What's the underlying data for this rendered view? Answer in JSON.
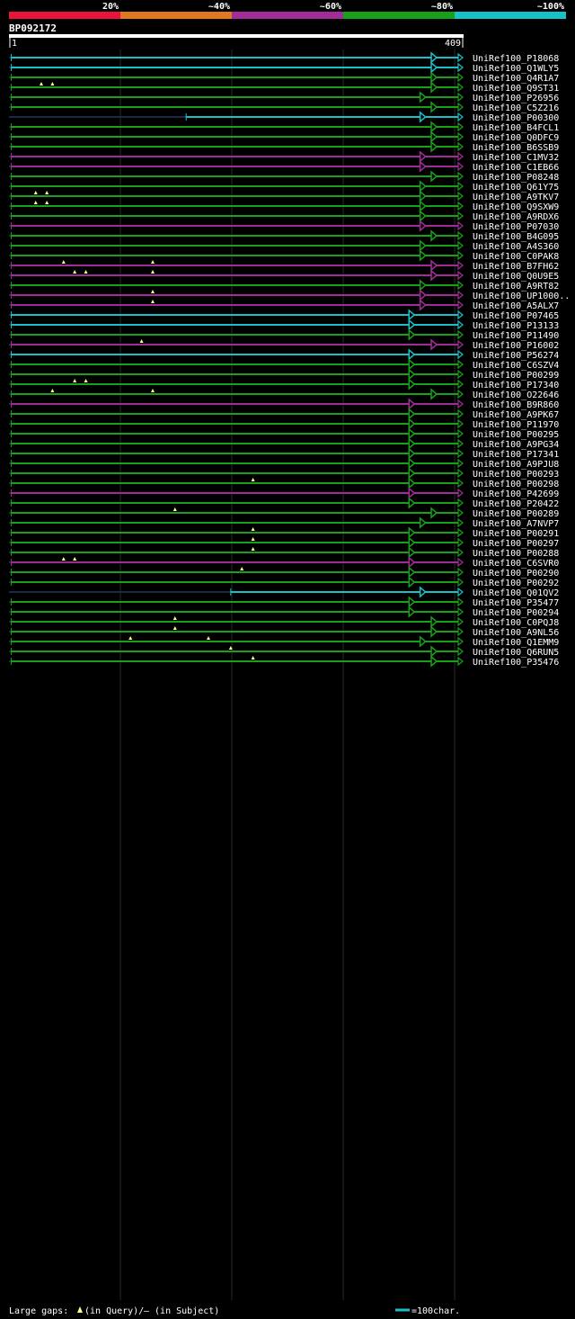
{
  "chart_data": {
    "type": "alignment-overview",
    "title": "BP092172",
    "query_start_label": "1",
    "query_end_label": "409",
    "query_length": 409,
    "identity_legend": [
      {
        "label": "20%",
        "color": "#e8143c"
      },
      {
        "label": "~40%",
        "color": "#e07820"
      },
      {
        "label": "~60%",
        "color": "#a02c98"
      },
      {
        "label": "~80%",
        "color": "#18a018"
      },
      {
        "label": "~100%",
        "color": "#18c0c8"
      }
    ],
    "hits": [
      {
        "name": "UniRef100_P18068",
        "s": 3,
        "e": 409,
        "c": "#18c0c8",
        "a": 380,
        "g": []
      },
      {
        "name": "UniRef100_Q1WLY5",
        "s": 3,
        "e": 409,
        "c": "#18c0c8",
        "a": 380,
        "g": []
      },
      {
        "name": "UniRef100_Q4R1A7",
        "s": 3,
        "e": 409,
        "c": "#18a018",
        "a": 380,
        "g": []
      },
      {
        "name": "UniRef100_Q9ST31",
        "s": 3,
        "e": 409,
        "c": "#18a018",
        "a": 380,
        "g": [
          30,
          40
        ]
      },
      {
        "name": "UniRef100_P26956",
        "s": 3,
        "e": 409,
        "c": "#18a018",
        "a": 370,
        "g": []
      },
      {
        "name": "UniRef100_C5Z216",
        "s": 3,
        "e": 409,
        "c": "#18a018",
        "a": 380,
        "g": []
      },
      {
        "name": "UniRef100_P00300",
        "s": 160,
        "e": 409,
        "c": "#18c0c8",
        "a": 370,
        "g": []
      },
      {
        "name": "UniRef100_B4FCL1",
        "s": 3,
        "e": 409,
        "c": "#18a018",
        "a": 380,
        "g": []
      },
      {
        "name": "UniRef100_Q0DFC9",
        "s": 3,
        "e": 409,
        "c": "#18a018",
        "a": 380,
        "g": []
      },
      {
        "name": "UniRef100_B6SSB9",
        "s": 3,
        "e": 409,
        "c": "#18a018",
        "a": 380,
        "g": []
      },
      {
        "name": "UniRef100_C1MV32",
        "s": 3,
        "e": 409,
        "c": "#a02c98",
        "a": 370,
        "g": []
      },
      {
        "name": "UniRef100_C1EB66",
        "s": 3,
        "e": 409,
        "c": "#a02c98",
        "a": 370,
        "g": []
      },
      {
        "name": "UniRef100_P08248",
        "s": 3,
        "e": 409,
        "c": "#18a018",
        "a": 380,
        "g": []
      },
      {
        "name": "UniRef100_Q61Y75",
        "s": 3,
        "e": 409,
        "c": "#18a018",
        "a": 370,
        "g": []
      },
      {
        "name": "UniRef100_A9TKV7",
        "s": 3,
        "e": 409,
        "c": "#18a018",
        "a": 370,
        "g": [
          25,
          35
        ]
      },
      {
        "name": "UniRef100_Q9SXW9",
        "s": 3,
        "e": 409,
        "c": "#18a018",
        "a": 370,
        "g": [
          25,
          35
        ]
      },
      {
        "name": "UniRef100_A9RDX6",
        "s": 3,
        "e": 409,
        "c": "#18a018",
        "a": 370,
        "g": []
      },
      {
        "name": "UniRef100_P07030",
        "s": 3,
        "e": 409,
        "c": "#a02c98",
        "a": 370,
        "g": []
      },
      {
        "name": "UniRef100_B4G095",
        "s": 3,
        "e": 409,
        "c": "#18a018",
        "a": 380,
        "g": []
      },
      {
        "name": "UniRef100_A4S360",
        "s": 3,
        "e": 409,
        "c": "#18a018",
        "a": 370,
        "g": []
      },
      {
        "name": "UniRef100_C0PAK8",
        "s": 3,
        "e": 409,
        "c": "#18a018",
        "a": 370,
        "g": []
      },
      {
        "name": "UniRef100_B7FH62",
        "s": 3,
        "e": 409,
        "c": "#a02c98",
        "a": 380,
        "g": [
          50,
          130
        ]
      },
      {
        "name": "UniRef100_Q0U9E5",
        "s": 3,
        "e": 409,
        "c": "#a02c98",
        "a": 380,
        "g": [
          60,
          70,
          130
        ]
      },
      {
        "name": "UniRef100_A9RT82",
        "s": 3,
        "e": 409,
        "c": "#18a018",
        "a": 370,
        "g": []
      },
      {
        "name": "UniRef100_UP1000..",
        "s": 3,
        "e": 409,
        "c": "#a02c98",
        "a": 370,
        "g": [
          130
        ]
      },
      {
        "name": "UniRef100_A5ALX7",
        "s": 3,
        "e": 409,
        "c": "#a02c98",
        "a": 370,
        "g": [
          130
        ]
      },
      {
        "name": "UniRef100_P07465",
        "s": 3,
        "e": 409,
        "c": "#18c0c8",
        "a": 360,
        "g": []
      },
      {
        "name": "UniRef100_P13133",
        "s": 3,
        "e": 409,
        "c": "#18c0c8",
        "a": 360,
        "g": []
      },
      {
        "name": "UniRef100_P11490",
        "s": 3,
        "e": 409,
        "c": "#18a018",
        "a": 360,
        "g": []
      },
      {
        "name": "UniRef100_P16002",
        "s": 3,
        "e": 409,
        "c": "#a02c98",
        "a": 380,
        "g": [
          120
        ]
      },
      {
        "name": "UniRef100_P56274",
        "s": 3,
        "e": 409,
        "c": "#18c0c8",
        "a": 360,
        "g": []
      },
      {
        "name": "UniRef100_C6SZV4",
        "s": 3,
        "e": 409,
        "c": "#18a018",
        "a": 360,
        "g": []
      },
      {
        "name": "UniRef100_P00299",
        "s": 3,
        "e": 409,
        "c": "#18a018",
        "a": 360,
        "g": []
      },
      {
        "name": "UniRef100_P17340",
        "s": 3,
        "e": 409,
        "c": "#18a018",
        "a": 360,
        "g": [
          60,
          70
        ]
      },
      {
        "name": "UniRef100_O22646",
        "s": 3,
        "e": 409,
        "c": "#18a018",
        "a": 380,
        "g": [
          40,
          130
        ]
      },
      {
        "name": "UniRef100_B9R860",
        "s": 3,
        "e": 409,
        "c": "#a02c98",
        "a": 360,
        "g": []
      },
      {
        "name": "UniRef100_A9PK67",
        "s": 3,
        "e": 409,
        "c": "#18a018",
        "a": 360,
        "g": []
      },
      {
        "name": "UniRef100_P11970",
        "s": 3,
        "e": 409,
        "c": "#18a018",
        "a": 360,
        "g": []
      },
      {
        "name": "UniRef100_P00295",
        "s": 3,
        "e": 409,
        "c": "#18a018",
        "a": 360,
        "g": []
      },
      {
        "name": "UniRef100_A9PG34",
        "s": 3,
        "e": 409,
        "c": "#18a018",
        "a": 360,
        "g": []
      },
      {
        "name": "UniRef100_P17341",
        "s": 3,
        "e": 409,
        "c": "#18a018",
        "a": 360,
        "g": []
      },
      {
        "name": "UniRef100_A9PJU8",
        "s": 3,
        "e": 409,
        "c": "#18a018",
        "a": 360,
        "g": []
      },
      {
        "name": "UniRef100_P00293",
        "s": 3,
        "e": 409,
        "c": "#18a018",
        "a": 360,
        "g": []
      },
      {
        "name": "UniRef100_P00298",
        "s": 3,
        "e": 409,
        "c": "#18a018",
        "a": 360,
        "g": [
          220
        ]
      },
      {
        "name": "UniRef100_P42699",
        "s": 3,
        "e": 409,
        "c": "#a02c98",
        "a": 360,
        "g": []
      },
      {
        "name": "UniRef100_P20422",
        "s": 3,
        "e": 409,
        "c": "#18a018",
        "a": 360,
        "g": []
      },
      {
        "name": "UniRef100_P00289",
        "s": 3,
        "e": 409,
        "c": "#18a018",
        "a": 380,
        "g": [
          150
        ]
      },
      {
        "name": "UniRef100_A7NVP7",
        "s": 3,
        "e": 409,
        "c": "#18a018",
        "a": 370,
        "g": []
      },
      {
        "name": "UniRef100_P00291",
        "s": 3,
        "e": 409,
        "c": "#18a018",
        "a": 360,
        "g": [
          220
        ]
      },
      {
        "name": "UniRef100_P00297",
        "s": 3,
        "e": 409,
        "c": "#18a018",
        "a": 360,
        "g": [
          220
        ]
      },
      {
        "name": "UniRef100_P00288",
        "s": 3,
        "e": 409,
        "c": "#18a018",
        "a": 360,
        "g": [
          220
        ]
      },
      {
        "name": "UniRef100_C6SVR0",
        "s": 3,
        "e": 409,
        "c": "#a02c98",
        "a": 360,
        "g": [
          50,
          60
        ]
      },
      {
        "name": "UniRef100_P00290",
        "s": 3,
        "e": 409,
        "c": "#18a018",
        "a": 360,
        "g": [
          210
        ]
      },
      {
        "name": "UniRef100_P00292",
        "s": 3,
        "e": 409,
        "c": "#18a018",
        "a": 360,
        "g": []
      },
      {
        "name": "UniRef100_Q01QV2",
        "s": 200,
        "e": 409,
        "c": "#18c0c8",
        "a": 370,
        "g": []
      },
      {
        "name": "UniRef100_P35477",
        "s": 3,
        "e": 409,
        "c": "#18a018",
        "a": 360,
        "g": []
      },
      {
        "name": "UniRef100_P00294",
        "s": 3,
        "e": 409,
        "c": "#18a018",
        "a": 360,
        "g": []
      },
      {
        "name": "UniRef100_C0PQJ8",
        "s": 3,
        "e": 409,
        "c": "#18a018",
        "a": 380,
        "g": [
          150
        ]
      },
      {
        "name": "UniRef100_A9NL56",
        "s": 3,
        "e": 409,
        "c": "#18a018",
        "a": 380,
        "g": [
          150
        ]
      },
      {
        "name": "UniRef100_Q1EMM9",
        "s": 3,
        "e": 409,
        "c": "#18a018",
        "a": 370,
        "g": [
          110,
          180
        ]
      },
      {
        "name": "UniRef100_Q6RUN5",
        "s": 3,
        "e": 409,
        "c": "#18a018",
        "a": 380,
        "g": [
          200
        ]
      },
      {
        "name": "UniRef100_P35476",
        "s": 3,
        "e": 409,
        "c": "#18a018",
        "a": 380,
        "g": [
          220
        ]
      }
    ],
    "footer": {
      "gaps_label": "Large gaps:",
      "query_label": "(in Query)/",
      "subject_label": "– (in Subject)",
      "scale_label": "=100char."
    }
  }
}
